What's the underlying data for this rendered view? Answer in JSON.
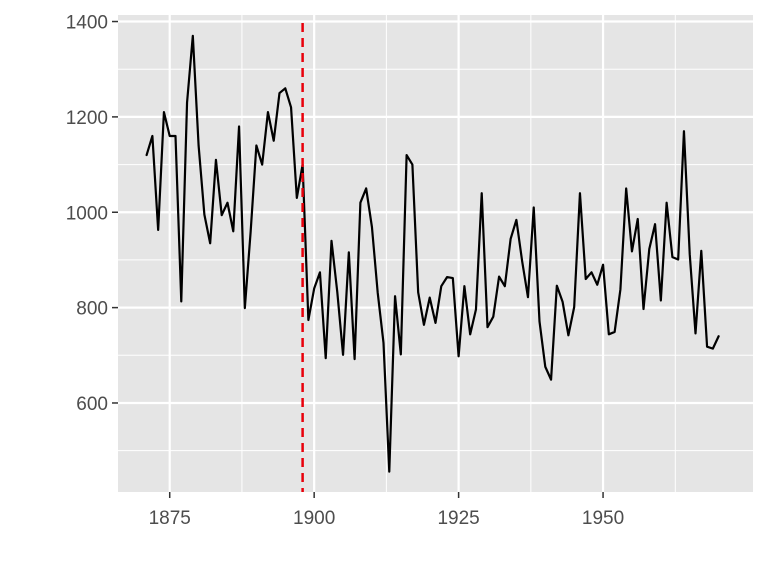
{
  "chart_data": {
    "type": "line",
    "title": "",
    "xlabel": "",
    "ylabel": "",
    "xlim": [
      1866.05,
      1975.95
    ],
    "ylim": [
      413.3,
      1413.7
    ],
    "x_ticks": [
      1875,
      1900,
      1925,
      1950
    ],
    "x_tick_labels": [
      "1875",
      "1900",
      "1925",
      "1950"
    ],
    "y_ticks": [
      600,
      800,
      1000,
      1200,
      1400
    ],
    "y_tick_labels": [
      "600",
      "800",
      "1000",
      "1200",
      "1400"
    ],
    "grid": true,
    "legend": "none",
    "colors": {
      "panel": "#e5e5e5",
      "grid": "#ffffff",
      "line": "#000000",
      "reference_line": "#e8000b",
      "tick_text": "#4d4d4d"
    },
    "reference_line": {
      "orientation": "vertical",
      "x": 1898,
      "style": "dashed"
    },
    "series": [
      {
        "x": [
          1871,
          1872,
          1873,
          1874,
          1875,
          1876,
          1877,
          1878,
          1879,
          1880,
          1881,
          1882,
          1883,
          1884,
          1885,
          1886,
          1887,
          1888,
          1889,
          1890,
          1891,
          1892,
          1893,
          1894,
          1895,
          1896,
          1897,
          1898,
          1899,
          1900,
          1901,
          1902,
          1903,
          1904,
          1905,
          1906,
          1907,
          1908,
          1909,
          1910,
          1911,
          1912,
          1913,
          1914,
          1915,
          1916,
          1917,
          1918,
          1919,
          1920,
          1921,
          1922,
          1923,
          1924,
          1925,
          1926,
          1927,
          1928,
          1929,
          1930,
          1931,
          1932,
          1933,
          1934,
          1935,
          1936,
          1937,
          1938,
          1939,
          1940,
          1941,
          1942,
          1943,
          1944,
          1945,
          1946,
          1947,
          1948,
          1949,
          1950,
          1951,
          1952,
          1953,
          1954,
          1955,
          1956,
          1957,
          1958,
          1959,
          1960,
          1961,
          1962,
          1963,
          1964,
          1965,
          1966,
          1967,
          1968,
          1969,
          1970
        ],
        "values": [
          1120,
          1160,
          963,
          1210,
          1160,
          1160,
          813,
          1230,
          1370,
          1140,
          995,
          935,
          1110,
          994,
          1020,
          960,
          1180,
          799,
          958,
          1140,
          1100,
          1210,
          1150,
          1250,
          1260,
          1220,
          1030,
          1100,
          774,
          840,
          874,
          694,
          940,
          833,
          701,
          916,
          692,
          1020,
          1050,
          969,
          831,
          726,
          456,
          824,
          702,
          1120,
          1100,
          832,
          764,
          821,
          768,
          845,
          864,
          862,
          698,
          845,
          744,
          796,
          1040,
          759,
          781,
          865,
          845,
          944,
          984,
          897,
          822,
          1010,
          771,
          676,
          649,
          846,
          812,
          742,
          801,
          1040,
          860,
          874,
          848,
          890,
          744,
          749,
          838,
          1050,
          918,
          986,
          797,
          923,
          975,
          815,
          1020,
          906,
          901,
          1170,
          912,
          746,
          919,
          718,
          714,
          740
        ]
      }
    ]
  }
}
